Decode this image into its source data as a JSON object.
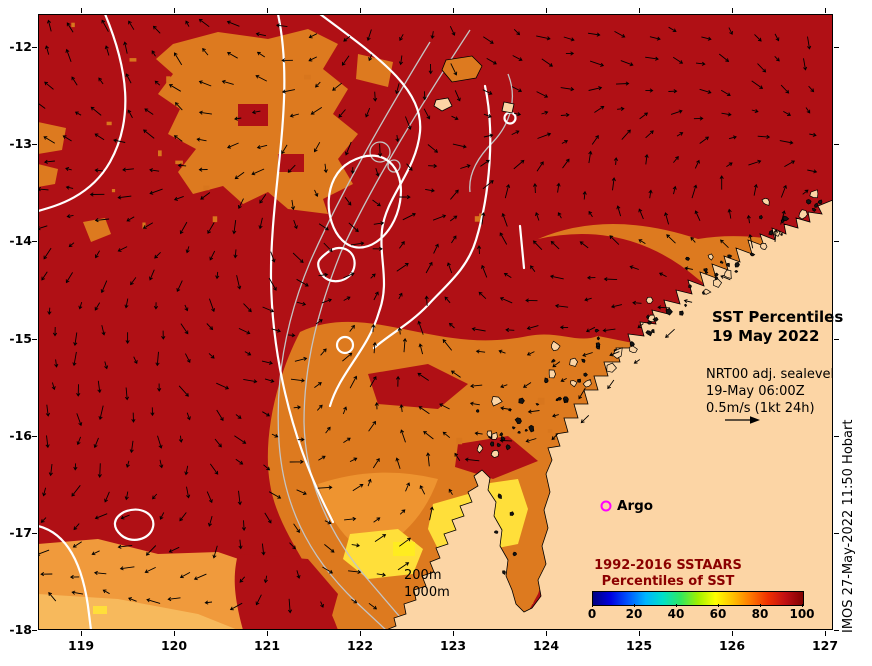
{
  "axes": {
    "lat_ticks": [
      "-12",
      "-13",
      "-14",
      "-15",
      "-16",
      "-17",
      "-18"
    ],
    "lon_ticks": [
      "119",
      "120",
      "121",
      "122",
      "123",
      "124",
      "125",
      "126",
      "127"
    ]
  },
  "title": {
    "line1": "SST Percentiles",
    "line2": "19 May 2022"
  },
  "info": {
    "line1": "NRT00 adj. sealevel",
    "line2": "19-May 06:00Z",
    "line3": "0.5m/s (1kt 24h)"
  },
  "argo": {
    "label": "Argo",
    "marker_color": "#ff00ff"
  },
  "depth_labels": {
    "shallow": "200m",
    "deep": "1000m"
  },
  "legend": {
    "title_line1": "1992-2016 SSTAARS",
    "title_line2": "Percentiles of SST",
    "tick_labels": [
      "0",
      "20",
      "40",
      "60",
      "80",
      "100"
    ],
    "gradient": [
      "#000080",
      "#0000e0",
      "#0055ff",
      "#00b4ff",
      "#00e0c8",
      "#30e860",
      "#a0f000",
      "#ffff00",
      "#ffc000",
      "#ff7800",
      "#f03000",
      "#c00f12",
      "#800000"
    ],
    "title_color": "#8b0000"
  },
  "watermark": "IMOS 27-May-2022 11:50 Hobart",
  "map_colors": {
    "sea_percentile_high": "#b01015",
    "sea_percentile_mid": "#dd7a1f",
    "sea_percentile_low": "#ffdf3a",
    "land": "#fcd5a5",
    "white_contour": "#ffffff",
    "bathymetry_gray": "#c4c4c4"
  }
}
